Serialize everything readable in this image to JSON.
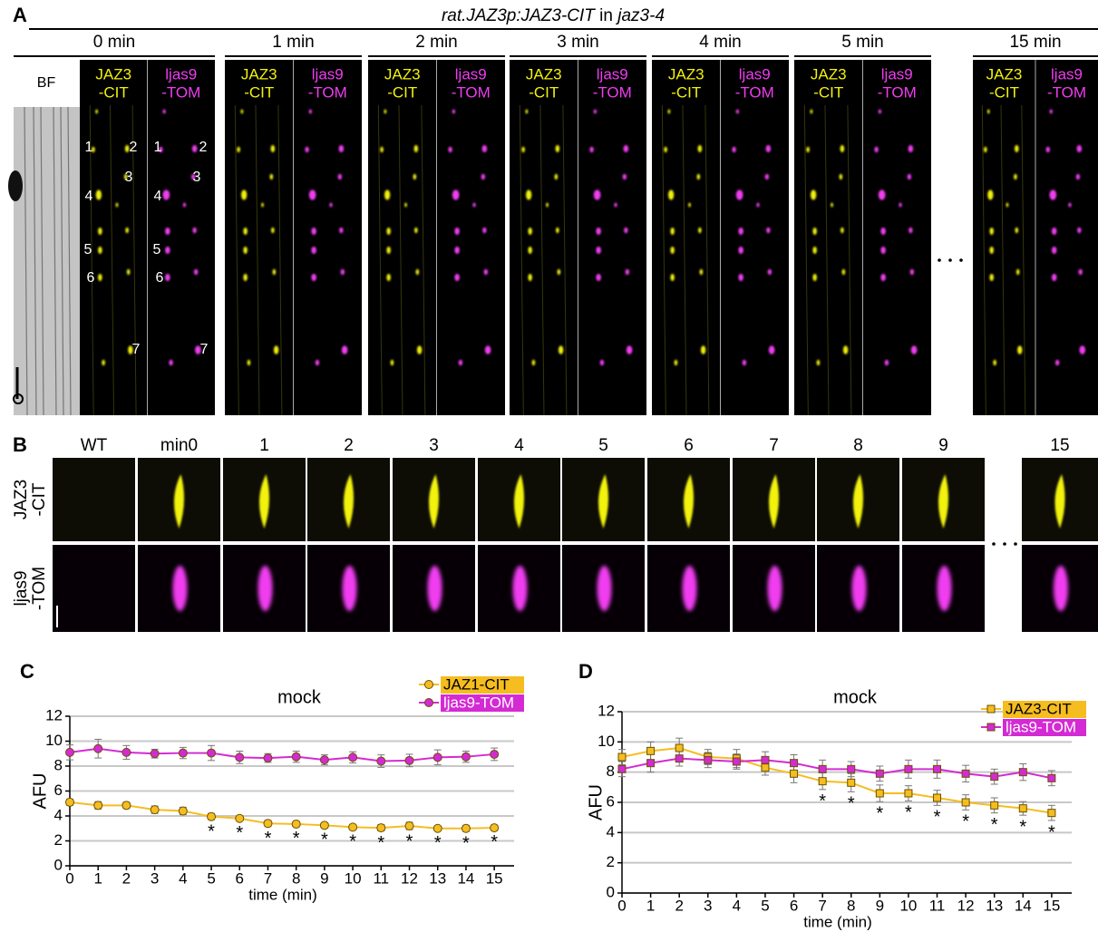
{
  "panel_a": {
    "label": "A",
    "title": [
      {
        "text": "rat.JAZ3p:JAZ3-CIT",
        "italic": true
      },
      {
        "text": " in ",
        "italic": false
      },
      {
        "text": "jaz3-4",
        "italic": true
      }
    ],
    "bf_label": "BF",
    "channels": [
      {
        "lines": [
          "JAZ3",
          "-CIT"
        ],
        "color": "#f2f20a"
      },
      {
        "lines": [
          "ljas9",
          "-TOM"
        ],
        "color": "#f03cf0"
      }
    ],
    "time_groups": [
      "0 min",
      "1 min",
      "2 min",
      "3 min",
      "4 min",
      "5 min",
      "15 min"
    ],
    "cell_numbers": [
      "1",
      "2",
      "3",
      "4",
      "5",
      "6",
      "7"
    ]
  },
  "panel_b": {
    "label": "B",
    "columns": [
      "WT",
      "min0",
      "1",
      "2",
      "3",
      "4",
      "5",
      "6",
      "7",
      "8",
      "9",
      "15"
    ],
    "rows": [
      [
        "JAZ3",
        "-CIT"
      ],
      [
        "ljas9",
        "-TOM"
      ]
    ]
  },
  "chart_data": [
    {
      "type": "line",
      "panel_label": "C",
      "title": "mock",
      "y_label": "AFU",
      "x_label": "time (min)",
      "x": [
        0,
        1,
        2,
        3,
        4,
        5,
        6,
        7,
        8,
        9,
        10,
        11,
        12,
        13,
        14,
        15
      ],
      "xlim": [
        0,
        15.7
      ],
      "ylim": [
        0,
        12
      ],
      "xticks": [
        0,
        1,
        2,
        3,
        4,
        5,
        6,
        7,
        8,
        9,
        10,
        11,
        12,
        13,
        14,
        15
      ],
      "yticks": [
        0,
        2,
        4,
        6,
        8,
        10,
        12
      ],
      "grid": true,
      "legend": "top-right",
      "marker": "circle",
      "series": [
        {
          "name": "JAZ1-CIT",
          "color": "#f5bd1f",
          "text_color": "#000000",
          "values": [
            5.1,
            4.85,
            4.85,
            4.5,
            4.4,
            3.95,
            3.8,
            3.4,
            3.35,
            3.25,
            3.1,
            3.05,
            3.2,
            3.0,
            3.0,
            3.05
          ],
          "errors": [
            0.25,
            0.3,
            0.25,
            0.3,
            0.3,
            0.25,
            0.2,
            0.25,
            0.2,
            0.2,
            0.2,
            0.25,
            0.3,
            0.2,
            0.25,
            0.2
          ]
        },
        {
          "name": "ljas9-TOM",
          "color": "#d42ad4",
          "text_color": "#ffffff",
          "values": [
            9.1,
            9.4,
            9.1,
            9.0,
            9.05,
            9.05,
            8.7,
            8.65,
            8.75,
            8.5,
            8.7,
            8.4,
            8.45,
            8.7,
            8.75,
            8.95
          ],
          "errors": [
            0.6,
            0.75,
            0.55,
            0.35,
            0.45,
            0.6,
            0.5,
            0.35,
            0.45,
            0.4,
            0.45,
            0.5,
            0.5,
            0.6,
            0.45,
            0.5
          ]
        }
      ],
      "significance": {
        "label": "*",
        "series": 0,
        "x": [
          5,
          6,
          7,
          8,
          9,
          10,
          11,
          12,
          13,
          14,
          15
        ]
      }
    },
    {
      "type": "line",
      "panel_label": "D",
      "title": "mock",
      "y_label": "AFU",
      "x_label": "time (min)",
      "x": [
        0,
        1,
        2,
        3,
        4,
        5,
        6,
        7,
        8,
        9,
        10,
        11,
        12,
        13,
        14,
        15
      ],
      "xlim": [
        0,
        15.7
      ],
      "ylim": [
        0,
        12
      ],
      "xticks": [
        0,
        1,
        2,
        3,
        4,
        5,
        6,
        7,
        8,
        9,
        10,
        11,
        12,
        13,
        14,
        15
      ],
      "yticks": [
        0,
        2,
        4,
        6,
        8,
        10,
        12
      ],
      "grid": true,
      "legend": "top-right",
      "marker": "square",
      "series": [
        {
          "name": "JAZ3-CIT",
          "color": "#f5bd1f",
          "text_color": "#000000",
          "values": [
            9.0,
            9.4,
            9.6,
            9.0,
            8.9,
            8.3,
            7.9,
            7.4,
            7.3,
            6.6,
            6.6,
            6.3,
            6.0,
            5.8,
            5.6,
            5.3
          ],
          "errors": [
            0.5,
            0.6,
            0.65,
            0.5,
            0.6,
            0.5,
            0.6,
            0.55,
            0.6,
            0.55,
            0.5,
            0.5,
            0.5,
            0.5,
            0.45,
            0.5
          ]
        },
        {
          "name": "ljas9-TOM",
          "color": "#d42ad4",
          "text_color": "#ffffff",
          "values": [
            8.2,
            8.6,
            8.9,
            8.8,
            8.7,
            8.8,
            8.6,
            8.2,
            8.2,
            7.9,
            8.2,
            8.2,
            7.9,
            7.7,
            8.0,
            7.6
          ],
          "errors": [
            0.5,
            0.6,
            0.5,
            0.5,
            0.5,
            0.55,
            0.55,
            0.6,
            0.5,
            0.5,
            0.6,
            0.6,
            0.55,
            0.5,
            0.55,
            0.5
          ]
        }
      ],
      "significance": {
        "label": "*",
        "series": 0,
        "x": [
          7,
          8,
          9,
          10,
          11,
          12,
          13,
          14,
          15
        ]
      }
    }
  ]
}
